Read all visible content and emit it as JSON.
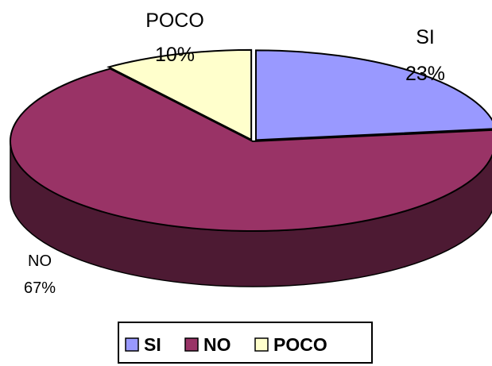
{
  "chart_data": {
    "type": "pie",
    "categories": [
      "SI",
      "NO",
      "POCO"
    ],
    "values": [
      23,
      67,
      10
    ],
    "data_labels": [
      {
        "category": "SI",
        "percent": "23%"
      },
      {
        "category": "NO",
        "percent": "67%"
      },
      {
        "category": "POCO",
        "percent": "10%"
      }
    ],
    "colors": {
      "SI": "#9999ff",
      "NO": "#993366",
      "POCO": "#ffffcc"
    },
    "legend": {
      "placement": "bottom",
      "entries": [
        "SI",
        "NO",
        "POCO"
      ]
    },
    "style": "3d-pie-exploded",
    "title": ""
  }
}
